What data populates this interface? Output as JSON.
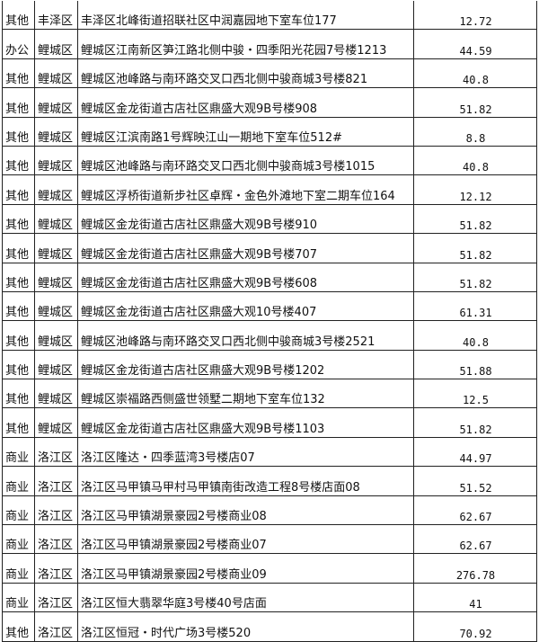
{
  "rows": [
    {
      "type": "其他",
      "district": "丰泽区",
      "address": "丰泽区北峰街道招联社区中润嘉园地下室车位177",
      "area": "12.72"
    },
    {
      "type": "办公",
      "district": "鲤城区",
      "address": "鲤城区江南新区笋江路北侧中骏・四季阳光花园7号楼1213",
      "area": "44.59"
    },
    {
      "type": "其他",
      "district": "鲤城区",
      "address": "鲤城区池峰路与南环路交叉口西北侧中骏商城3号楼821",
      "area": "40.8"
    },
    {
      "type": "其他",
      "district": "鲤城区",
      "address": "鲤城区金龙街道古店社区鼎盛大观9B号楼908",
      "area": "51.82"
    },
    {
      "type": "其他",
      "district": "鲤城区",
      "address": "鲤城区江滨南路1号辉映江山一期地下室车位512#",
      "area": "8.8"
    },
    {
      "type": "其他",
      "district": "鲤城区",
      "address": "鲤城区池峰路与南环路交叉口西北侧中骏商城3号楼1015",
      "area": "40.8"
    },
    {
      "type": "其他",
      "district": "鲤城区",
      "address": "鲤城区浮桥街道新步社区卓辉・金色外滩地下室二期车位164",
      "area": "12.12"
    },
    {
      "type": "其他",
      "district": "鲤城区",
      "address": "鲤城区金龙街道古店社区鼎盛大观9B号楼910",
      "area": "51.82"
    },
    {
      "type": "其他",
      "district": "鲤城区",
      "address": "鲤城区金龙街道古店社区鼎盛大观9B号楼707",
      "area": "51.82"
    },
    {
      "type": "其他",
      "district": "鲤城区",
      "address": "鲤城区金龙街道古店社区鼎盛大观9B号楼608",
      "area": "51.82"
    },
    {
      "type": "其他",
      "district": "鲤城区",
      "address": "鲤城区金龙街道古店社区鼎盛大观10号楼407",
      "area": "61.31"
    },
    {
      "type": "其他",
      "district": "鲤城区",
      "address": "鲤城区池峰路与南环路交叉口西北侧中骏商城3号楼2521",
      "area": "40.8"
    },
    {
      "type": "其他",
      "district": "鲤城区",
      "address": "鲤城区金龙街道古店社区鼎盛大观9B号楼1202",
      "area": "51.88"
    },
    {
      "type": "其他",
      "district": "鲤城区",
      "address": "鲤城区崇福路西侧盛世领墅二期地下室车位132",
      "area": "12.5"
    },
    {
      "type": "其他",
      "district": "鲤城区",
      "address": "鲤城区金龙街道古店社区鼎盛大观9B号楼1103",
      "area": "51.82"
    },
    {
      "type": "商业",
      "district": "洛江区",
      "address": "洛江区隆达・四季蓝湾3号楼店07",
      "area": "44.97"
    },
    {
      "type": "商业",
      "district": "洛江区",
      "address": "洛江区马甲镇马甲村马甲镇南街改造工程8号楼店面08",
      "area": "51.52"
    },
    {
      "type": "商业",
      "district": "洛江区",
      "address": "洛江区马甲镇湖景豪园2号楼商业08",
      "area": "62.67"
    },
    {
      "type": "商业",
      "district": "洛江区",
      "address": "洛江区马甲镇湖景豪园2号楼商业07",
      "area": "62.67"
    },
    {
      "type": "商业",
      "district": "洛江区",
      "address": "洛江区马甲镇湖景豪园2号楼商业09",
      "area": "276.78"
    },
    {
      "type": "商业",
      "district": "洛江区",
      "address": "洛江区恒大翡翠华庭3号楼40号店面",
      "area": "41"
    },
    {
      "type": "其他",
      "district": "洛江区",
      "address": "洛江区恒冠・时代广场3号楼520",
      "area": "70.92"
    }
  ]
}
